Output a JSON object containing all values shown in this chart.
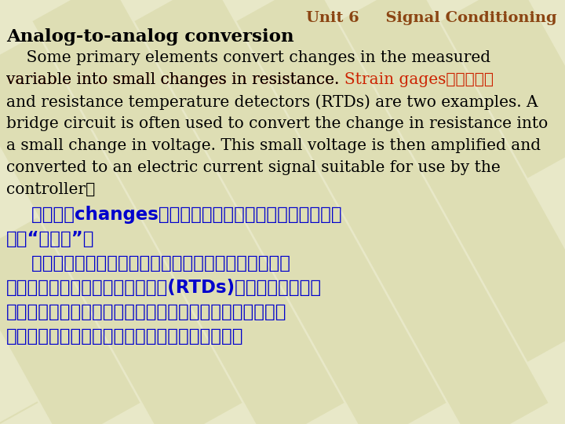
{
  "bg_color": "#e8e8c8",
  "header_text": "Unit 6     Signal Conditioning",
  "header_color": "#8B4513",
  "title_text": "Analog-to-analog conversion",
  "title_color": "#000000",
  "body_en_line1": "    Some primary elements convert changes in the measured",
  "body_en_line2_pre": "variable into small changes in resistance. ",
  "body_en_line2_red": "Strain gages",
  "body_en_line2_post": "（应变仪）",
  "body_en_line3": "and resistance temperature detectors (RTDs) are two examples. A",
  "body_en_line4": "bridge circuit is often used to convert the change in resistance into",
  "body_en_line5": "a small change in voltage. This small voltage is then amplified and",
  "body_en_line6": "converted to an electric current signal suitable for use by the",
  "body_en_line7": "controller。",
  "body_cn_line1": "    注意句中changes强调转换的不是被测量本身，而是被测",
  "body_cn_line2": "量的“变化量”。",
  "body_cn_line3": "    一些基本元件将被测量的变化量转换成电阵的很小的变",
  "body_cn_line4": "化量。应变片和电阵式温度探测器(RTDs)就是两个例子。电",
  "body_cn_line5": "桥常用于将电阵的变化量转换成很小的电压变化量。然后小",
  "body_cn_line6": "电压被放大，转换成适合控制器使用的电流信号。",
  "en_color": "#000000",
  "cn_color": "#0000cd",
  "red_color": "#cc2200",
  "en_fontsize": 14.5,
  "cn_fontsize": 16.5,
  "header_fontsize": 14
}
